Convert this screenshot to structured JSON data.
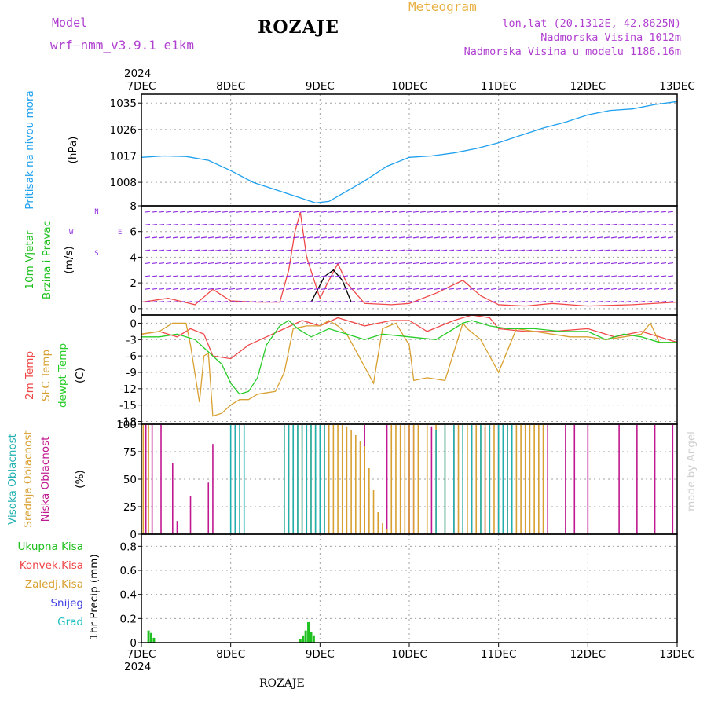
{
  "header": {
    "title": "ROZAJE",
    "meteogram": "Meteogram",
    "model_label": "Model",
    "model_name": "wrf–nmm_v3.9.1  e1km",
    "coords": "lon,lat (20.1312E, 42.8625N)",
    "elevation": "Nadmorska Visina 1012m",
    "model_elevation": "Nadmorska Visina u modelu 1186.16m",
    "watermark": "made by Angel",
    "footer": "ROZAJE"
  },
  "colors": {
    "pressure": "#1ea0ee",
    "temp2m": "#f04848",
    "sfc_temp": "#d8a030",
    "dewpoint": "#28cc28",
    "high_cloud": "#20b0b0",
    "mid_cloud": "#d8a030",
    "low_cloud": "#c01890",
    "wind_purple": "#9030e0",
    "precip_total": "#20c020",
    "grid": "#a0a0a0"
  },
  "chart_data": [
    {
      "type": "line",
      "panel": "pressure",
      "ylabel_main": "Pritisak na nivou mora",
      "ylabel_unit": "(hPa)",
      "ylim": [
        1000,
        1038
      ],
      "yticks": [
        "1035",
        "1026",
        "1017",
        "1008"
      ],
      "ytick_values": [
        1035,
        1026,
        1017,
        1008
      ],
      "xlim": [
        0,
        6
      ],
      "x_ticks": [
        "7DEC",
        "8DEC",
        "9DEC",
        "10DEC",
        "11DEC",
        "12DEC",
        "13DEC"
      ],
      "x_year": "2024",
      "grid": true,
      "series": [
        {
          "color_key": "pressure",
          "x": [
            0,
            0.25,
            0.5,
            0.75,
            1.0,
            1.25,
            1.5,
            1.75,
            1.95,
            2.1,
            2.3,
            2.5,
            2.75,
            3.0,
            3.25,
            3.5,
            3.75,
            4.0,
            4.25,
            4.5,
            4.75,
            5.0,
            5.25,
            5.5,
            5.75,
            6.0
          ],
          "values": [
            1016.5,
            1017.0,
            1016.8,
            1015.5,
            1012.0,
            1008.0,
            1005.5,
            1003.0,
            1001.0,
            1001.5,
            1005.0,
            1008.5,
            1013.5,
            1016.5,
            1017.0,
            1018.0,
            1019.5,
            1021.5,
            1024.0,
            1026.5,
            1028.5,
            1031.0,
            1032.5,
            1033.0,
            1034.5,
            1035.5
          ]
        }
      ]
    },
    {
      "type": "line",
      "panel": "wind",
      "ylabel_main": "10m Vjetar",
      "ylabel_sub": "Brzina i Pravac",
      "ylabel_unit": "(m/s)",
      "compass": {
        "n": "N",
        "s": "S",
        "w": "W",
        "e": "E"
      },
      "ylim": [
        -0.5,
        8
      ],
      "yticks": [
        "8",
        "6",
        "4",
        "2",
        "0"
      ],
      "ytick_values": [
        8,
        6,
        4,
        2,
        0
      ],
      "series": [
        {
          "color_key": "temp2m",
          "x": [
            0,
            0.3,
            0.6,
            0.8,
            1.0,
            1.3,
            1.55,
            1.65,
            1.72,
            1.78,
            1.85,
            2.0,
            2.1,
            2.2,
            2.3,
            2.5,
            2.8,
            3.0,
            3.3,
            3.6,
            3.8,
            4.0,
            4.3,
            4.6,
            5.0,
            5.5,
            6.0
          ],
          "values": [
            0.5,
            0.8,
            0.3,
            1.5,
            0.6,
            0.5,
            0.5,
            3.0,
            6.0,
            7.5,
            4.0,
            0.8,
            2.2,
            3.5,
            2.0,
            0.4,
            0.3,
            0.4,
            1.2,
            2.2,
            1.0,
            0.3,
            0.2,
            0.4,
            0.2,
            0.3,
            0.5
          ]
        },
        {
          "color_key": "black",
          "x": [
            1.9,
            2.05,
            2.15,
            2.25,
            2.35
          ],
          "values": [
            0.5,
            2.5,
            3.0,
            2.2,
            0.5
          ]
        }
      ]
    },
    {
      "type": "line",
      "panel": "temperature",
      "ylabel_a": "2m Temp",
      "ylabel_b": "SFC Temp",
      "ylabel_c": "dewpt Temp",
      "ylabel_unit": "(C)",
      "ylim": [
        -18.5,
        1.5
      ],
      "yticks": [
        "0",
        "-3",
        "-6",
        "-9",
        "-12",
        "-15",
        "-18"
      ],
      "ytick_values": [
        0,
        -3,
        -6,
        -9,
        -12,
        -15,
        -18
      ],
      "series": [
        {
          "color_key": "temp2m",
          "x": [
            0,
            0.2,
            0.4,
            0.55,
            0.7,
            0.8,
            1.0,
            1.2,
            1.4,
            1.6,
            1.8,
            2.0,
            2.2,
            2.5,
            2.8,
            3.0,
            3.2,
            3.5,
            3.7,
            3.9,
            4.0,
            4.3,
            4.6,
            5.0,
            5.3,
            5.6,
            5.8,
            6.0
          ],
          "values": [
            -2.0,
            -1.5,
            -2.5,
            -1.0,
            -2.0,
            -6.0,
            -6.5,
            -4.0,
            -2.5,
            -1.0,
            0.5,
            -0.5,
            1.0,
            -0.5,
            0.5,
            0.5,
            -1.5,
            0.5,
            1.5,
            1.0,
            -1.0,
            -1.5,
            -1.5,
            -1.0,
            -2.5,
            -1.5,
            -2.5,
            -3.5
          ]
        },
        {
          "color_key": "sfc_temp",
          "x": [
            0,
            0.2,
            0.35,
            0.5,
            0.55,
            0.65,
            0.7,
            0.75,
            0.8,
            0.9,
            1.0,
            1.1,
            1.2,
            1.3,
            1.5,
            1.6,
            1.7,
            1.85,
            2.0,
            2.1,
            2.2,
            2.3,
            2.5,
            2.6,
            2.7,
            2.85,
            3.0,
            3.05,
            3.2,
            3.4,
            3.6,
            3.65,
            3.8,
            4.0,
            4.2,
            4.4,
            4.6,
            4.8,
            5.0,
            5.2,
            5.4,
            5.6,
            5.7,
            5.8,
            5.9,
            6.0
          ],
          "values": [
            -2.0,
            -1.5,
            0.0,
            0.0,
            -4.0,
            -14.5,
            -6.0,
            -5.5,
            -17.0,
            -16.5,
            -15.0,
            -14.0,
            -14.0,
            -13.0,
            -12.5,
            -9.0,
            -1.0,
            -0.5,
            -0.5,
            0.5,
            -0.5,
            -2.0,
            -8.0,
            -11.0,
            -1.0,
            0.0,
            -4.0,
            -10.5,
            -10.0,
            -10.5,
            0.0,
            -1.0,
            -3.0,
            -9.0,
            -1.0,
            -1.5,
            -2.0,
            -2.5,
            -2.5,
            -3.0,
            -2.5,
            -2.0,
            0.0,
            -3.5,
            -3.5,
            -3.5
          ]
        },
        {
          "color_key": "dewpoint",
          "x": [
            0,
            0.2,
            0.4,
            0.6,
            0.8,
            0.9,
            1.0,
            1.1,
            1.2,
            1.3,
            1.4,
            1.55,
            1.65,
            1.75,
            1.9,
            2.1,
            2.3,
            2.5,
            2.7,
            3.0,
            3.3,
            3.6,
            3.7,
            3.9,
            4.1,
            4.4,
            4.7,
            5.0,
            5.2,
            5.4,
            5.6,
            5.8,
            6.0
          ],
          "values": [
            -2.5,
            -2.5,
            -2.0,
            -3.0,
            -6.0,
            -7.5,
            -11.0,
            -13.0,
            -12.5,
            -10.0,
            -4.0,
            -0.5,
            0.5,
            -1.0,
            -2.5,
            -1.0,
            -2.0,
            -3.0,
            -2.0,
            -2.5,
            -3.0,
            0.0,
            0.5,
            -0.5,
            -1.0,
            -1.0,
            -1.5,
            -1.5,
            -3.0,
            -2.0,
            -2.5,
            -3.5,
            -3.5
          ]
        }
      ]
    },
    {
      "type": "bar",
      "panel": "clouds",
      "ylabel_a": "Visoka Oblacnost",
      "ylabel_b": "Srednja Oblacnost",
      "ylabel_c": "Niska Oblacnost",
      "ylabel_unit": "(%)",
      "ylim": [
        0,
        100
      ],
      "yticks": [
        "100",
        "75",
        "50",
        "25",
        "0"
      ],
      "ytick_values": [
        100,
        75,
        50,
        25,
        0
      ],
      "series": [
        {
          "name": "Niska",
          "color_key": "low_cloud",
          "x": [
            0.05,
            0.12,
            0.22,
            0.35,
            0.4,
            0.55,
            0.75,
            0.8,
            1.05,
            2.5,
            2.75,
            3.0,
            3.05,
            3.25,
            3.5,
            3.7,
            3.85,
            4.0,
            4.1,
            4.3,
            4.55,
            4.75,
            4.85,
            5.0,
            5.35,
            5.55,
            5.75,
            5.95
          ],
          "values": [
            100,
            100,
            100,
            65,
            12,
            35,
            47,
            82,
            100,
            100,
            100,
            100,
            100,
            98,
            100,
            100,
            98,
            100,
            100,
            100,
            100,
            100,
            100,
            100,
            100,
            100,
            100,
            100
          ]
        },
        {
          "name": "Srednja",
          "color_key": "mid_cloud",
          "x": [
            0.02,
            0.08,
            1.6,
            1.65,
            1.7,
            1.75,
            1.8,
            1.85,
            1.9,
            1.95,
            2.0,
            2.05,
            2.1,
            2.15,
            2.2,
            2.25,
            2.3,
            2.35,
            2.4,
            2.45,
            2.5,
            2.55,
            2.6,
            2.65,
            2.7,
            2.75,
            2.8,
            2.85,
            2.9,
            2.95,
            3.0,
            3.05,
            3.1,
            3.2,
            3.3,
            3.4,
            3.5,
            3.55,
            3.6,
            3.65,
            3.7,
            3.75,
            3.8,
            3.85,
            3.9,
            3.95,
            4.0,
            4.05,
            4.1,
            4.15,
            4.2,
            4.25,
            4.3,
            4.35,
            4.4,
            4.45,
            4.5
          ],
          "values": [
            100,
            100,
            100,
            100,
            100,
            100,
            100,
            100,
            100,
            100,
            100,
            100,
            100,
            100,
            100,
            100,
            98,
            95,
            90,
            85,
            80,
            60,
            40,
            20,
            10,
            5,
            100,
            100,
            100,
            100,
            100,
            100,
            100,
            100,
            100,
            100,
            100,
            100,
            100,
            100,
            100,
            100,
            100,
            100,
            100,
            100,
            100,
            100,
            100,
            100,
            100,
            100,
            100,
            100,
            100,
            100,
            100
          ]
        },
        {
          "name": "Visoka",
          "color_key": "high_cloud",
          "x": [
            1.0,
            1.05,
            1.1,
            1.15,
            1.6,
            1.65,
            1.7,
            1.75,
            1.8,
            1.85,
            1.9,
            1.95,
            2.0,
            2.05,
            3.3,
            3.4,
            3.5,
            3.6,
            3.7,
            3.8,
            3.9,
            4.0,
            4.05,
            4.1,
            4.15
          ],
          "values": [
            100,
            100,
            100,
            100,
            100,
            100,
            100,
            100,
            100,
            100,
            100,
            100,
            100,
            100,
            95,
            100,
            100,
            100,
            100,
            100,
            100,
            100,
            100,
            100,
            100
          ]
        }
      ]
    },
    {
      "type": "bar",
      "panel": "precip",
      "ylabel_unit": "1hr Precip (mm)",
      "legend": [
        "Ukupna Kisa",
        "Konvek.Kisa",
        "Zaledj.Kisa",
        "Snijeg",
        "Grad"
      ],
      "legend_color_keys": [
        "precip_total",
        "temp2m",
        "sfc_temp",
        "snow",
        "grad"
      ],
      "ylim": [
        0,
        0.9
      ],
      "yticks": [
        "0.8",
        "0.6",
        "0.4",
        "0.2",
        "0"
      ],
      "ytick_values": [
        0.8,
        0.6,
        0.4,
        0.2,
        0
      ],
      "series": [
        {
          "name": "Ukupna Kisa",
          "color_key": "precip_total",
          "x": [
            0.08,
            0.11,
            0.14,
            1.78,
            1.81,
            1.84,
            1.87,
            1.9,
            1.93
          ],
          "values": [
            0.1,
            0.08,
            0.04,
            0.03,
            0.06,
            0.1,
            0.17,
            0.09,
            0.06
          ]
        }
      ]
    }
  ]
}
